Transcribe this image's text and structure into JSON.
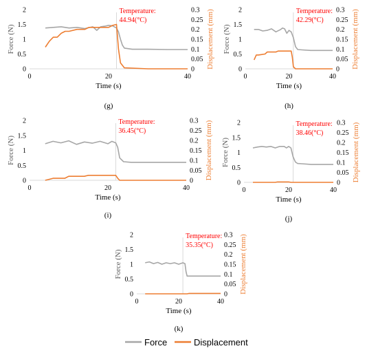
{
  "colors": {
    "force": "#a6a6a6",
    "displacement": "#ed7d31",
    "temperature": "#ff0000",
    "divider": "#d9d9d9"
  },
  "legend": {
    "force": "Force",
    "displacement": "Displacement"
  },
  "chart_data": [
    {
      "panel": "(g)",
      "type": "line",
      "temperature_label": "Temperature:",
      "temperature_value": "44.94(°C)",
      "xlabel": "Time (s)",
      "ylabel": "Force (N)",
      "y2label": "Displacement (mm)",
      "xlim": [
        0,
        40
      ],
      "ylim": [
        0,
        2
      ],
      "y2lim": [
        0,
        0.3
      ],
      "xticks": [
        "0",
        "20",
        "40"
      ],
      "yticks": [
        "0",
        "0.5",
        "1",
        "1.5",
        "2"
      ],
      "y2ticks": [
        "0",
        "0.05",
        "0.1",
        "0.15",
        "0.2",
        "0.25",
        "0.3"
      ],
      "series": [
        {
          "name": "Force",
          "axis": "left",
          "x": [
            4,
            6,
            8,
            10,
            12,
            14,
            16,
            17,
            18,
            19,
            20,
            21,
            22,
            22.5,
            23,
            23.5,
            24,
            26,
            30,
            35,
            40
          ],
          "y": [
            1.38,
            1.4,
            1.42,
            1.38,
            1.4,
            1.36,
            1.42,
            1.3,
            1.42,
            1.44,
            1.47,
            1.45,
            1.38,
            1.25,
            1.0,
            0.8,
            0.7,
            0.66,
            0.66,
            0.65,
            0.65
          ]
        },
        {
          "name": "Displacement",
          "axis": "right",
          "x": [
            4,
            5,
            6,
            7,
            8,
            9,
            10,
            12,
            14,
            15,
            16,
            18,
            20,
            21,
            22,
            22.5,
            23,
            24,
            30,
            40
          ],
          "y": [
            0.11,
            0.14,
            0.16,
            0.16,
            0.18,
            0.19,
            0.19,
            0.2,
            0.2,
            0.21,
            0.21,
            0.21,
            0.21,
            0.22,
            0.225,
            0.1,
            0.03,
            0.005,
            0.0,
            0.0
          ]
        }
      ]
    },
    {
      "panel": "(h)",
      "type": "line",
      "temperature_label": "Temperature:",
      "temperature_value": "42.29(°C)",
      "xlabel": "Time (s)",
      "ylabel": "Force (N)",
      "y2label": "Displacement (mm)",
      "xlim": [
        0,
        40
      ],
      "ylim": [
        0,
        2
      ],
      "y2lim": [
        0,
        0.3
      ],
      "xticks": [
        "0",
        "20",
        "40"
      ],
      "yticks": [
        "0",
        "0.5",
        "1",
        "1.5",
        "2"
      ],
      "y2ticks": [
        "0",
        "0.05",
        "0.1",
        "0.15",
        "0.2",
        "0.25",
        "0.3"
      ],
      "series": [
        {
          "name": "Force",
          "axis": "left",
          "x": [
            4,
            6,
            8,
            10,
            12,
            14,
            16,
            17,
            18,
            19,
            20,
            21,
            22,
            23,
            24,
            26,
            30,
            35,
            40
          ],
          "y": [
            1.33,
            1.33,
            1.28,
            1.3,
            1.35,
            1.25,
            1.32,
            1.38,
            1.35,
            1.2,
            1.3,
            1.25,
            1.05,
            0.75,
            0.65,
            0.64,
            0.62,
            0.62,
            0.62
          ]
        },
        {
          "name": "Displacement",
          "axis": "right",
          "x": [
            4,
            5,
            6,
            9,
            10,
            14,
            15,
            21,
            21.5,
            22,
            23,
            30,
            40
          ],
          "y": [
            0.045,
            0.07,
            0.07,
            0.075,
            0.085,
            0.085,
            0.09,
            0.09,
            0.06,
            0.01,
            0.0,
            0.0,
            0.0
          ]
        }
      ]
    },
    {
      "panel": "(i)",
      "type": "line",
      "temperature_label": "Temperature:",
      "temperature_value": "36.45(°C)",
      "xlabel": "Time (s)",
      "ylabel": "Force (N)",
      "y2label": "Displacement (mm)",
      "xlim": [
        0,
        40
      ],
      "ylim": [
        0,
        2
      ],
      "y2lim": [
        0,
        0.3
      ],
      "xticks": [
        "0",
        "20",
        "40"
      ],
      "yticks": [
        "0",
        "0.5",
        "1",
        "1.5",
        "2"
      ],
      "y2ticks": [
        "0",
        "0.05",
        "0.1",
        "0.15",
        "0.2",
        "0.25",
        "0.3"
      ],
      "series": [
        {
          "name": "Force",
          "axis": "left",
          "x": [
            4,
            6,
            8,
            10,
            12,
            14,
            16,
            18,
            20,
            21,
            22,
            22.5,
            23,
            24,
            26,
            30,
            35,
            40
          ],
          "y": [
            1.22,
            1.3,
            1.25,
            1.32,
            1.2,
            1.28,
            1.24,
            1.3,
            1.22,
            1.3,
            1.25,
            1.1,
            0.75,
            0.62,
            0.6,
            0.6,
            0.6,
            0.6
          ]
        },
        {
          "name": "Displacement",
          "axis": "right",
          "x": [
            4,
            5,
            6,
            9,
            10,
            14,
            15,
            22,
            22.5,
            23,
            30,
            40
          ],
          "y": [
            0.0,
            0.005,
            0.01,
            0.01,
            0.02,
            0.02,
            0.025,
            0.025,
            0.01,
            0.0,
            0.0,
            0.0
          ]
        }
      ]
    },
    {
      "panel": "(j)",
      "type": "line",
      "temperature_label": "Temperature:",
      "temperature_value": "38.46(°C)",
      "xlabel": "Time (s)",
      "ylabel": "Force (N)",
      "y2label": "Displacement (mm)",
      "xlim": [
        0,
        40
      ],
      "ylim": [
        0,
        2
      ],
      "y2lim": [
        0,
        0.3
      ],
      "xticks": [
        "0",
        "20",
        "40"
      ],
      "yticks": [
        "0",
        "0.5",
        "1",
        "1.5",
        "2"
      ],
      "y2ticks": [
        "0",
        "0.05",
        "0.1",
        "0.15",
        "0.2",
        "0.25",
        "0.3"
      ],
      "series": [
        {
          "name": "Force",
          "axis": "left",
          "x": [
            4,
            6,
            8,
            10,
            12,
            14,
            16,
            18,
            19,
            20,
            21,
            22,
            23,
            24,
            26,
            30,
            35,
            40
          ],
          "y": [
            1.15,
            1.18,
            1.2,
            1.18,
            1.2,
            1.15,
            1.2,
            1.2,
            1.15,
            1.2,
            1.15,
            0.85,
            0.68,
            0.63,
            0.62,
            0.6,
            0.6,
            0.6
          ]
        },
        {
          "name": "Displacement",
          "axis": "right",
          "x": [
            4,
            10,
            14,
            15,
            20,
            21,
            22,
            30,
            40
          ],
          "y": [
            0.0,
            0.0,
            0.0,
            0.002,
            0.002,
            0.0,
            0.0,
            0.0,
            0.0
          ]
        }
      ]
    },
    {
      "panel": "(k)",
      "type": "line",
      "temperature_label": "Temperature:",
      "temperature_value": "35.35(°C)",
      "xlabel": "Time (s)",
      "ylabel": "Force (N)",
      "y2label": "Displacement (mm)",
      "xlim": [
        0,
        40
      ],
      "ylim": [
        0,
        2
      ],
      "y2lim": [
        0,
        0.3
      ],
      "xticks": [
        "0",
        "20",
        "40"
      ],
      "yticks": [
        "0",
        "0.5",
        "1",
        "1.5",
        "2"
      ],
      "y2ticks": [
        "0",
        "0.05",
        "0.1",
        "0.15",
        "0.2",
        "0.25",
        "0.3"
      ],
      "series": [
        {
          "name": "Force",
          "axis": "left",
          "x": [
            4,
            6,
            8,
            10,
            12,
            14,
            16,
            18,
            20,
            22,
            23,
            23.5,
            24,
            26,
            30,
            35,
            40
          ],
          "y": [
            1.05,
            1.08,
            1.02,
            1.06,
            1.0,
            1.05,
            1.02,
            1.05,
            1.0,
            1.05,
            1.02,
            0.75,
            0.6,
            0.6,
            0.6,
            0.6,
            0.6
          ]
        },
        {
          "name": "Displacement",
          "axis": "right",
          "x": [
            4,
            10,
            20,
            24,
            25,
            30,
            40
          ],
          "y": [
            0.0,
            0.0,
            0.0,
            0.0,
            0.002,
            0.002,
            0.002
          ]
        }
      ]
    }
  ]
}
